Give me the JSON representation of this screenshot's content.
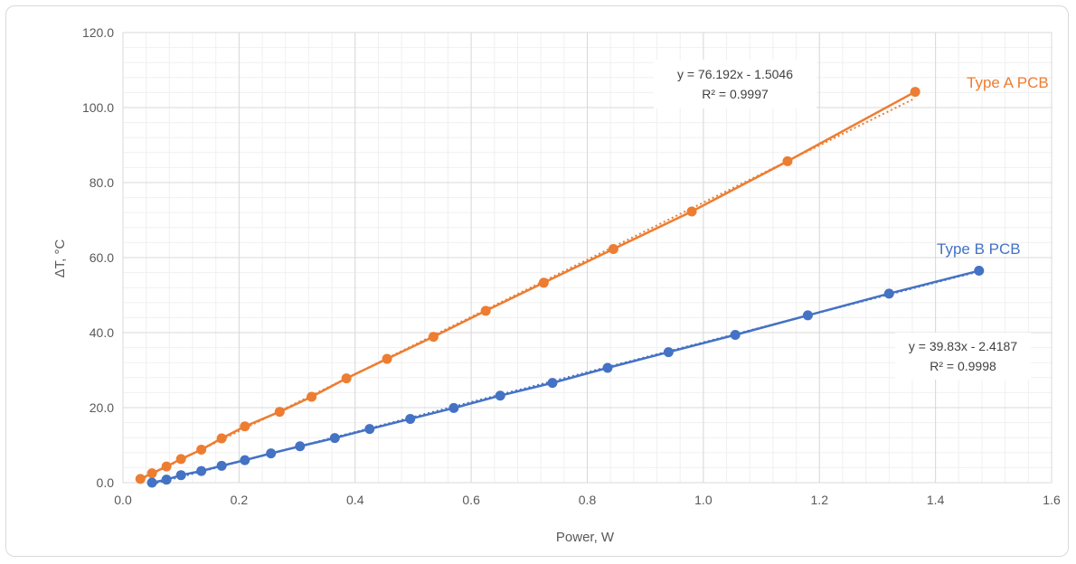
{
  "chart_data": {
    "type": "scatter",
    "title": "",
    "xlabel": "Power, W",
    "ylabel": "ΔT, °C",
    "xlim": [
      0,
      1.6
    ],
    "ylim": [
      0,
      120
    ],
    "x_ticks": [
      "0.0",
      "0.2",
      "0.4",
      "0.6",
      "0.8",
      "1.0",
      "1.2",
      "1.4",
      "1.6"
    ],
    "y_ticks": [
      "0.0",
      "20.0",
      "40.0",
      "60.0",
      "80.0",
      "100.0",
      "120.0"
    ],
    "grid": "major and minor",
    "series": [
      {
        "name": "Type A PCB",
        "color": "#ed7d31",
        "x": [
          0.03,
          0.05,
          0.075,
          0.1,
          0.135,
          0.17,
          0.21,
          0.27,
          0.325,
          0.385,
          0.455,
          0.535,
          0.625,
          0.725,
          0.845,
          0.98,
          1.145,
          1.365
        ],
        "y": [
          1.0,
          2.5,
          4.3,
          6.3,
          8.8,
          11.8,
          15.0,
          18.9,
          22.9,
          27.8,
          33.0,
          38.9,
          45.8,
          53.3,
          62.3,
          72.3,
          85.7,
          104.2
        ],
        "trendline": {
          "equation": "y = 76.192x - 1.5046",
          "r2": "R² = 0.9997",
          "slope": 76.192,
          "intercept": -1.5046
        }
      },
      {
        "name": "Type B PCB",
        "color": "#4472c4",
        "x": [
          0.05,
          0.075,
          0.1,
          0.135,
          0.17,
          0.21,
          0.255,
          0.305,
          0.365,
          0.425,
          0.495,
          0.57,
          0.65,
          0.74,
          0.835,
          0.94,
          1.055,
          1.18,
          1.32,
          1.475
        ],
        "y": [
          0.0,
          0.8,
          2.0,
          3.1,
          4.5,
          6.0,
          7.8,
          9.7,
          11.9,
          14.3,
          17.0,
          19.9,
          23.2,
          26.6,
          30.6,
          34.8,
          39.4,
          44.6,
          50.4,
          56.5
        ],
        "trendline": {
          "equation": "y = 39.83x - 2.4187",
          "r2": "R² = 0.9998",
          "slope": 39.83,
          "intercept": -2.4187
        }
      }
    ]
  }
}
